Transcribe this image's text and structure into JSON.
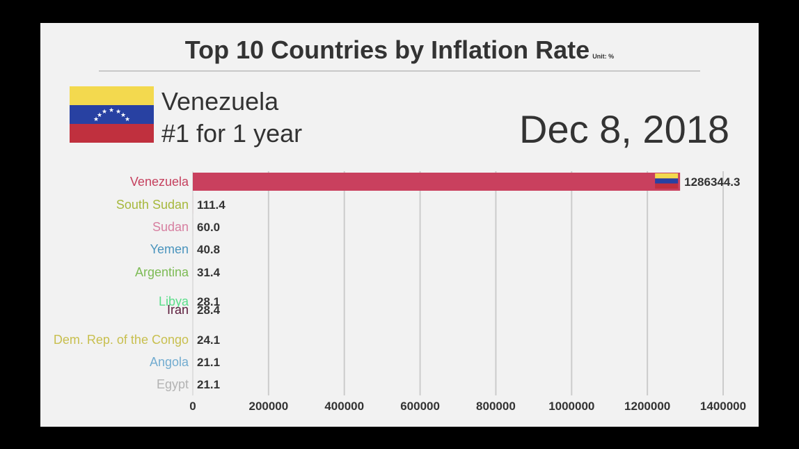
{
  "header": {
    "title": "Top 10 Countries by Inflation Rate",
    "unit": "Unit: %"
  },
  "leader": {
    "name": "Venezuela",
    "streak": "#1 for 1 year",
    "flag_icon": "venezuela-flag-icon"
  },
  "date": "Dec 8, 2018",
  "colors": {
    "background": "#f2f2f2",
    "frame": "#000000",
    "grid": "#cccccc",
    "text": "#333333"
  },
  "chart_data": {
    "type": "bar",
    "orientation": "horizontal",
    "categories": [
      "Venezuela",
      "South Sudan",
      "Sudan",
      "Yemen",
      "Argentina",
      "Libya",
      "Iran",
      "Dem. Rep. of the Congo",
      "Angola",
      "Egypt"
    ],
    "values": [
      1286344.3,
      111.4,
      60.0,
      40.8,
      31.4,
      28.1,
      28.4,
      24.1,
      21.1,
      21.1
    ],
    "value_labels": [
      "1286344.3",
      "111.4",
      "60.0",
      "40.8",
      "31.4",
      "28.1",
      "28.4",
      "24.1",
      "21.1",
      "21.1"
    ],
    "label_colors": [
      "#c5405e",
      "#a6b83c",
      "#d77fa0",
      "#4a94bd",
      "#7dbb55",
      "#5bde8a",
      "#5a1a3a",
      "#c8bf4e",
      "#72acd0",
      "#b3b3b3"
    ],
    "bar_color": "#c9405e",
    "xlim": [
      0,
      1400000
    ],
    "x_ticks": [
      "0",
      "200000",
      "400000",
      "600000",
      "800000",
      "1000000",
      "1200000",
      "1400000"
    ],
    "x_tick_values": [
      0,
      200000,
      400000,
      600000,
      800000,
      1000000,
      1200000,
      1400000
    ],
    "grid": true
  }
}
